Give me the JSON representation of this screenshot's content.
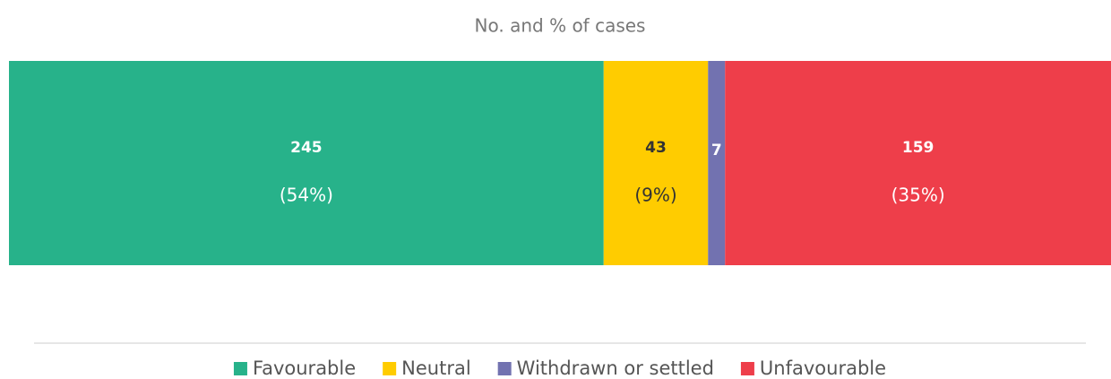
{
  "chart_data": {
    "type": "stacked_bar_100",
    "title": "No. and % of cases",
    "series": [
      {
        "name": "Favourable",
        "color": "#27b28a",
        "values": [
          245
        ],
        "shares": [
          54
        ],
        "share_labels": [
          "(54%)"
        ]
      },
      {
        "name": "Neutral",
        "color": "#ffcc00",
        "values": [
          43
        ],
        "shares": [
          9
        ],
        "share_labels": [
          "(9%)"
        ]
      },
      {
        "name": "Withdrawn or settled",
        "color": "#7272b0",
        "values": [
          7
        ],
        "shares": [
          1.5
        ],
        "share_labels": [
          "(1.5%)"
        ]
      },
      {
        "name": "Unfavourable",
        "color": "#ee3e4a",
        "values": [
          159
        ],
        "shares": [
          35
        ],
        "share_labels": [
          "(35%)"
        ]
      }
    ],
    "legend": "bottom"
  }
}
